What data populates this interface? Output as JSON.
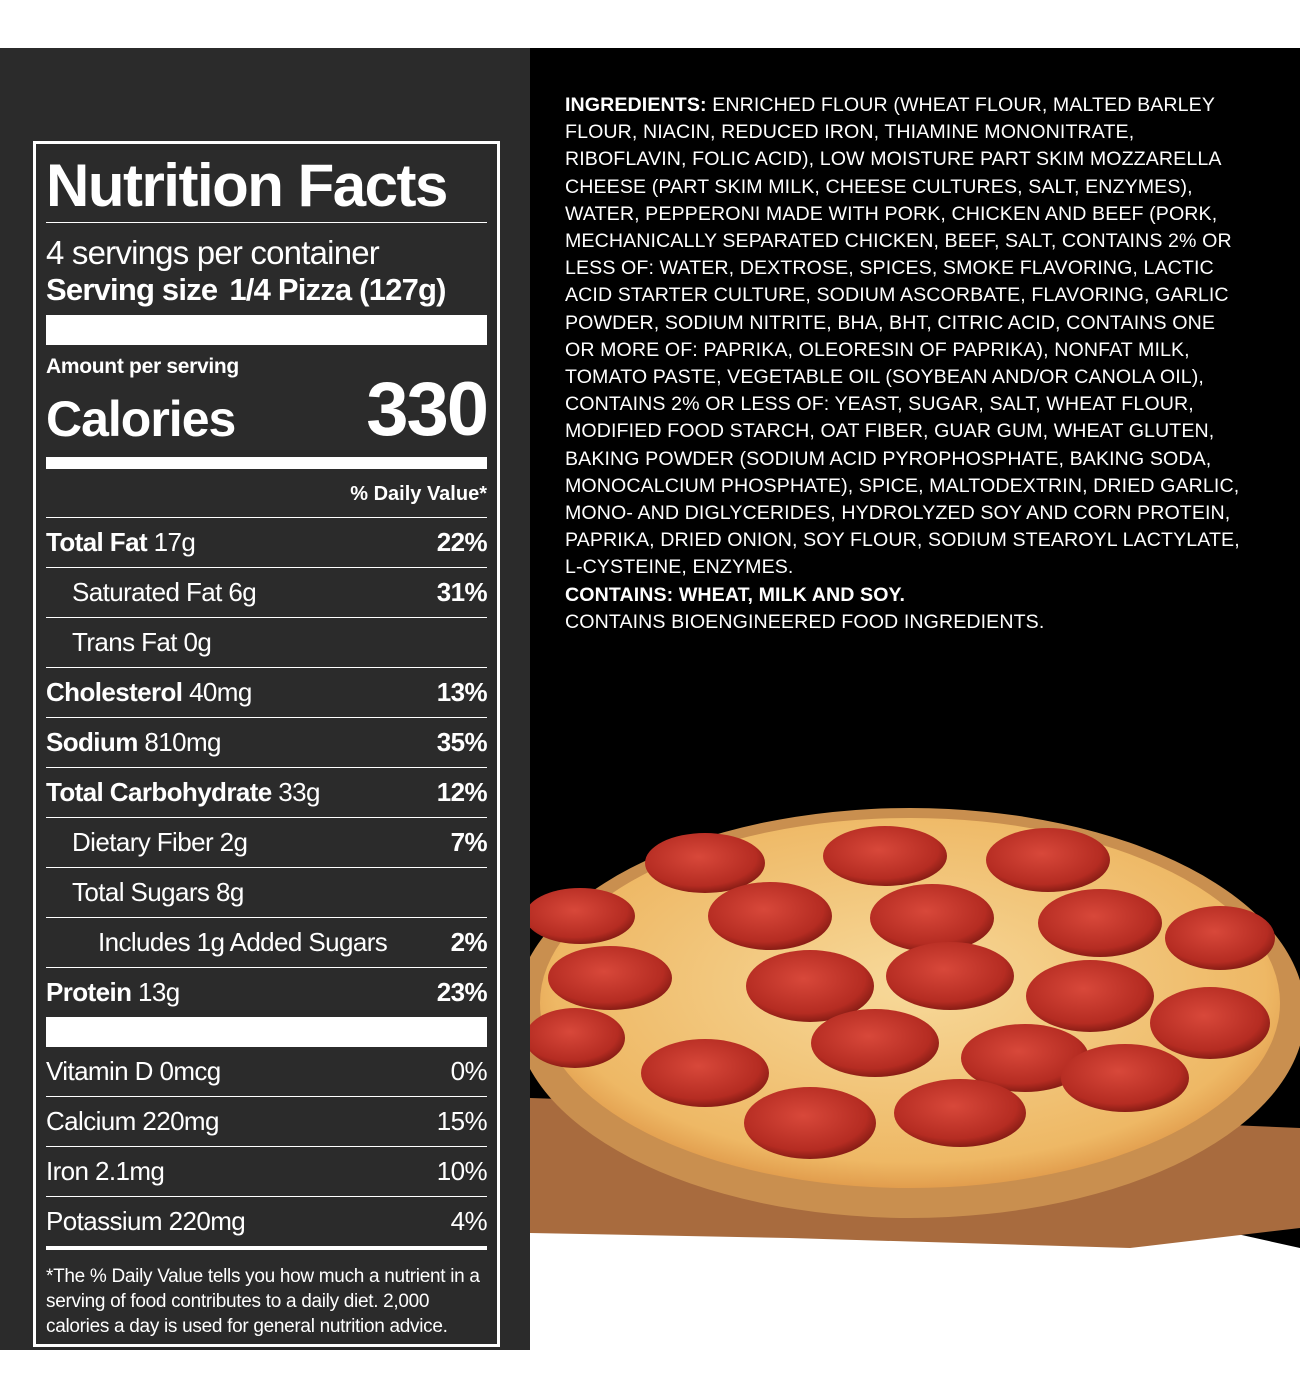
{
  "nutrition_facts": {
    "title": "Nutrition Facts",
    "servings_per_container": "4 servings per container",
    "serving_size_label": "Serving size",
    "serving_size_value": "1/4 Pizza (127g)",
    "amount_per_serving": "Amount per serving",
    "calories_label": "Calories",
    "calories_value": "330",
    "daily_value_header": "% Daily Value*",
    "nutrients": [
      {
        "name": "Total Fat",
        "amount": "17g",
        "dv": "22%",
        "sub": [
          {
            "name": "Saturated Fat",
            "amount": "6g",
            "dv": "31%"
          },
          {
            "name": "Trans Fat",
            "amount": "0g"
          }
        ]
      },
      {
        "name": "Cholesterol",
        "amount": "40mg",
        "dv": "13%"
      },
      {
        "name": "Sodium",
        "amount": "810mg",
        "dv": "35%"
      },
      {
        "name": "Total Carbohydrate",
        "amount": "33g",
        "dv": "12%",
        "sub": [
          {
            "name": "Dietary Fiber",
            "amount": "2g",
            "dv": "7%"
          },
          {
            "name": "Total Sugars",
            "amount": "8g",
            "sub": [
              {
                "name": "Includes 1g Added Sugars",
                "dv": "2%"
              }
            ]
          }
        ]
      },
      {
        "name": "Protein",
        "amount": "13g",
        "dv": "23%"
      }
    ],
    "vitamins": [
      {
        "name": "Vitamin D",
        "amount": "0mcg",
        "dv": "0%"
      },
      {
        "name": "Calcium",
        "amount": "220mg",
        "dv": "15%"
      },
      {
        "name": "Iron",
        "amount": "2.1mg",
        "dv": "10%"
      },
      {
        "name": "Potassium",
        "amount": "220mg",
        "dv": "4%"
      }
    ],
    "footnote": "*The % Daily Value tells you how much a nutrient in a serving of food contributes to a daily diet. 2,000 calories a day is used for general nutrition advice."
  },
  "ingredients": {
    "label": "INGREDIENTS:",
    "text": "ENRICHED FLOUR (WHEAT FLOUR, MALTED BARLEY FLOUR, NIACIN, REDUCED IRON, THIAMINE MONONITRATE, RIBOFLAVIN, FOLIC ACID), LOW MOISTURE PART SKIM MOZZARELLA CHEESE (PART SKIM MILK, CHEESE CULTURES, SALT, ENZYMES), WATER, PEPPERONI MADE WITH PORK, CHICKEN AND BEEF (PORK, MECHANICALLY SEPARATED CHICKEN, BEEF, SALT, CONTAINS 2% OR LESS OF: WATER, DEXTROSE, SPICES, SMOKE FLAVORING, LACTIC ACID STARTER CULTURE, SODIUM ASCORBATE, FLAVORING, GARLIC POWDER, SODIUM NITRITE, BHA, BHT, CITRIC ACID, CONTAINS ONE OR MORE OF: PAPRIKA, OLEORESIN OF PAPRIKA), NONFAT MILK, TOMATO PASTE, VEGETABLE OIL (SOYBEAN AND/OR CANOLA OIL), CONTAINS 2% OR LESS OF: YEAST, SUGAR, SALT, WHEAT FLOUR, MODIFIED FOOD STARCH, OAT FIBER, GUAR GUM, WHEAT GLUTEN, BAKING POWDER (SODIUM ACID PYROPHOSPHATE, BAKING SODA, MONOCALCIUM PHOSPHATE), SPICE, MALTODEXTRIN, DRIED GARLIC, MONO- AND DIGLYCERIDES, HYDROLYZED SOY AND CORN PROTEIN, PAPRIKA, DRIED ONION, SOY FLOUR, SODIUM STEAROYL LACTYLATE, L-CYSTEINE, ENZYMES.",
    "contains": "CONTAINS: WHEAT, MILK AND SOY.",
    "bioengineered": "CONTAINS BIOENGINEERED FOOD INGREDIENTS."
  }
}
